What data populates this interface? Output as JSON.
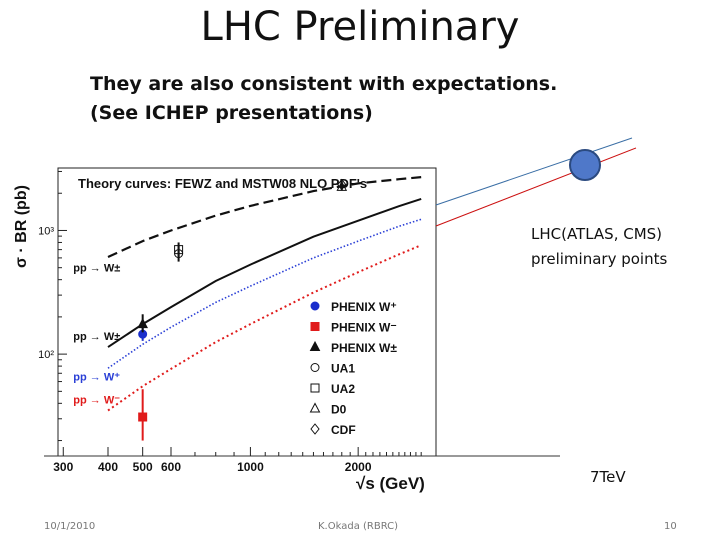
{
  "slide": {
    "title": "LHC Preliminary",
    "subtitle_line1": "They are also consistent with expectations.",
    "subtitle_line2": "(See ICHEP presentations)",
    "lhc_label_line1": "LHC(ATLAS, CMS)",
    "lhc_label_line2": "preliminary points",
    "energy_label": "7TeV",
    "footer_date": "10/1/2010",
    "footer_author": "K.Okada (RBRC)",
    "footer_page": "10"
  },
  "chart_data": {
    "type": "line",
    "title": "Theory curves: FEWZ and MSTW08 NLO PDF's",
    "xlabel": "√s (GeV)",
    "ylabel": "σ · BR (pb)",
    "xscale": "log",
    "yscale": "log",
    "xlim": [
      290,
      3300
    ],
    "ylim": [
      15,
      3200
    ],
    "x_ticks": [
      300,
      400,
      500,
      600,
      1000,
      2000
    ],
    "x_tick_labels": [
      "300",
      "400",
      "500",
      "600",
      "1000",
      "2000"
    ],
    "y_ticks": [
      1000,
      100
    ],
    "y_tick_labels": [
      "10³",
      "10²"
    ],
    "grid": false,
    "colors": {
      "wpm": "#111111",
      "w": "#111111",
      "wplus": "#2a3fd6",
      "wminus": "#e01b1b",
      "lhc_marker": "#4f78c9",
      "lhc_blue": "#3a6ea5",
      "lhc_red": "#cc1111"
    },
    "series": [
      {
        "key": "wpm",
        "x": [
          400,
          500,
          600,
          800,
          1000,
          1500,
          2000,
          2600,
          3000
        ],
        "y": [
          610,
          820,
          1000,
          1320,
          1580,
          2080,
          2400,
          2600,
          2700
        ]
      },
      {
        "key": "w",
        "x": [
          400,
          500,
          600,
          800,
          1000,
          1500,
          2000,
          2600,
          3000
        ],
        "y": [
          114,
          175,
          240,
          390,
          530,
          890,
          1200,
          1570,
          1800
        ]
      },
      {
        "key": "wplus",
        "x": [
          400,
          500,
          600,
          800,
          1000,
          1500,
          2000,
          2600,
          3000
        ],
        "y": [
          77,
          120,
          165,
          262,
          355,
          600,
          820,
          1080,
          1230
        ]
      },
      {
        "key": "wminus",
        "x": [
          400,
          500,
          600,
          800,
          1000,
          1500,
          2000,
          2600,
          3000
        ],
        "y": [
          35,
          55,
          76,
          125,
          175,
          315,
          460,
          640,
          760
        ]
      }
    ],
    "curve_labels": [
      {
        "key": "wpm",
        "text": "pp → W±",
        "x": 320,
        "y": 500,
        "color": "#111111"
      },
      {
        "key": "w",
        "text": "pp → W±",
        "x": 320,
        "y": 140,
        "color": "#111111"
      },
      {
        "key": "wplus",
        "text": "pp → W⁺",
        "x": 320,
        "y": 66,
        "color": "#2a3fd6"
      },
      {
        "key": "wminus",
        "text": "pp → W⁻",
        "x": 320,
        "y": 43,
        "color": "#e01b1b"
      }
    ],
    "points": [
      {
        "name": "PHENIX W⁺",
        "x": 500,
        "y": 145,
        "err": [
          128,
          180
        ],
        "marker": "circle",
        "color": "#1a2ecc"
      },
      {
        "name": "PHENIX W⁻",
        "x": 500,
        "y": 31,
        "err": [
          20,
          52
        ],
        "marker": "square",
        "color": "#e01b1b"
      },
      {
        "name": "PHENIX W±",
        "x": 500,
        "y": 175,
        "err": [
          150,
          210
        ],
        "marker": "triangle",
        "color": "#111111"
      },
      {
        "name": "UA2",
        "x": 630,
        "y": 700,
        "err": [
          600,
          800
        ],
        "marker": "open-square",
        "color": "#111111"
      },
      {
        "name": "UA1",
        "x": 630,
        "y": 650,
        "err": [
          560,
          760
        ],
        "marker": "open-circle",
        "color": "#111111"
      },
      {
        "name": "D0",
        "x": 1800,
        "y": 2250,
        "err": [
          2100,
          2400
        ],
        "marker": "open-triangle",
        "color": "#111111"
      },
      {
        "name": "CDF",
        "x": 1800,
        "y": 2350,
        "err": [
          2200,
          2500
        ],
        "marker": "open-diamond",
        "color": "#111111"
      }
    ],
    "legend": {
      "placement": "center-right",
      "entries": [
        {
          "text": "PHENIX W⁺",
          "marker": "circle",
          "color": "#1a2ecc"
        },
        {
          "text": "PHENIX W⁻",
          "marker": "square",
          "color": "#e01b1b"
        },
        {
          "text": "PHENIX W±",
          "marker": "triangle",
          "color": "#111111"
        },
        {
          "text": "UA1",
          "marker": "open-circle",
          "color": "#111111"
        },
        {
          "text": "UA2",
          "marker": "open-square",
          "color": "#111111"
        },
        {
          "text": "D0",
          "marker": "open-triangle",
          "color": "#111111"
        },
        {
          "text": "CDF",
          "marker": "open-diamond",
          "color": "#111111"
        }
      ]
    }
  }
}
